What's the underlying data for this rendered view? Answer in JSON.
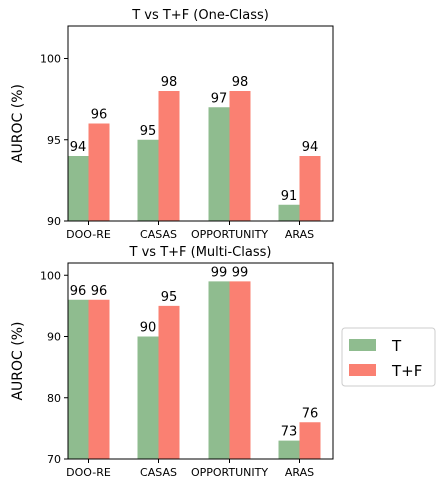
{
  "chart_data": [
    {
      "type": "bar",
      "title": "T vs T+F (One-Class)",
      "ylabel": "AUROC (%)",
      "xlabel": "",
      "categories": [
        "DOO-RE",
        "CASAS",
        "OPPORTUNITY",
        "ARAS"
      ],
      "series": [
        {
          "name": "T",
          "values": [
            94,
            95,
            97,
            91
          ]
        },
        {
          "name": "T+F",
          "values": [
            96,
            98,
            98,
            94
          ]
        }
      ],
      "ylim": [
        90,
        102
      ],
      "yticks": [
        90,
        95,
        100
      ],
      "grid": false
    },
    {
      "type": "bar",
      "title": "T vs T+F (Multi-Class)",
      "ylabel": "AUROC (%)",
      "xlabel": "",
      "categories": [
        "DOO-RE",
        "CASAS",
        "OPPORTUNITY",
        "ARAS"
      ],
      "series": [
        {
          "name": "T",
          "values": [
            96,
            90,
            99,
            73
          ]
        },
        {
          "name": "T+F",
          "values": [
            96,
            95,
            99,
            76
          ]
        }
      ],
      "ylim": [
        70,
        102
      ],
      "yticks": [
        70,
        80,
        90,
        100
      ],
      "grid": false
    }
  ],
  "legend": {
    "position": "right",
    "entries": [
      "T",
      "T+F"
    ]
  },
  "colors": {
    "T": "#8fbc8f",
    "T+F": "#fa8072"
  }
}
